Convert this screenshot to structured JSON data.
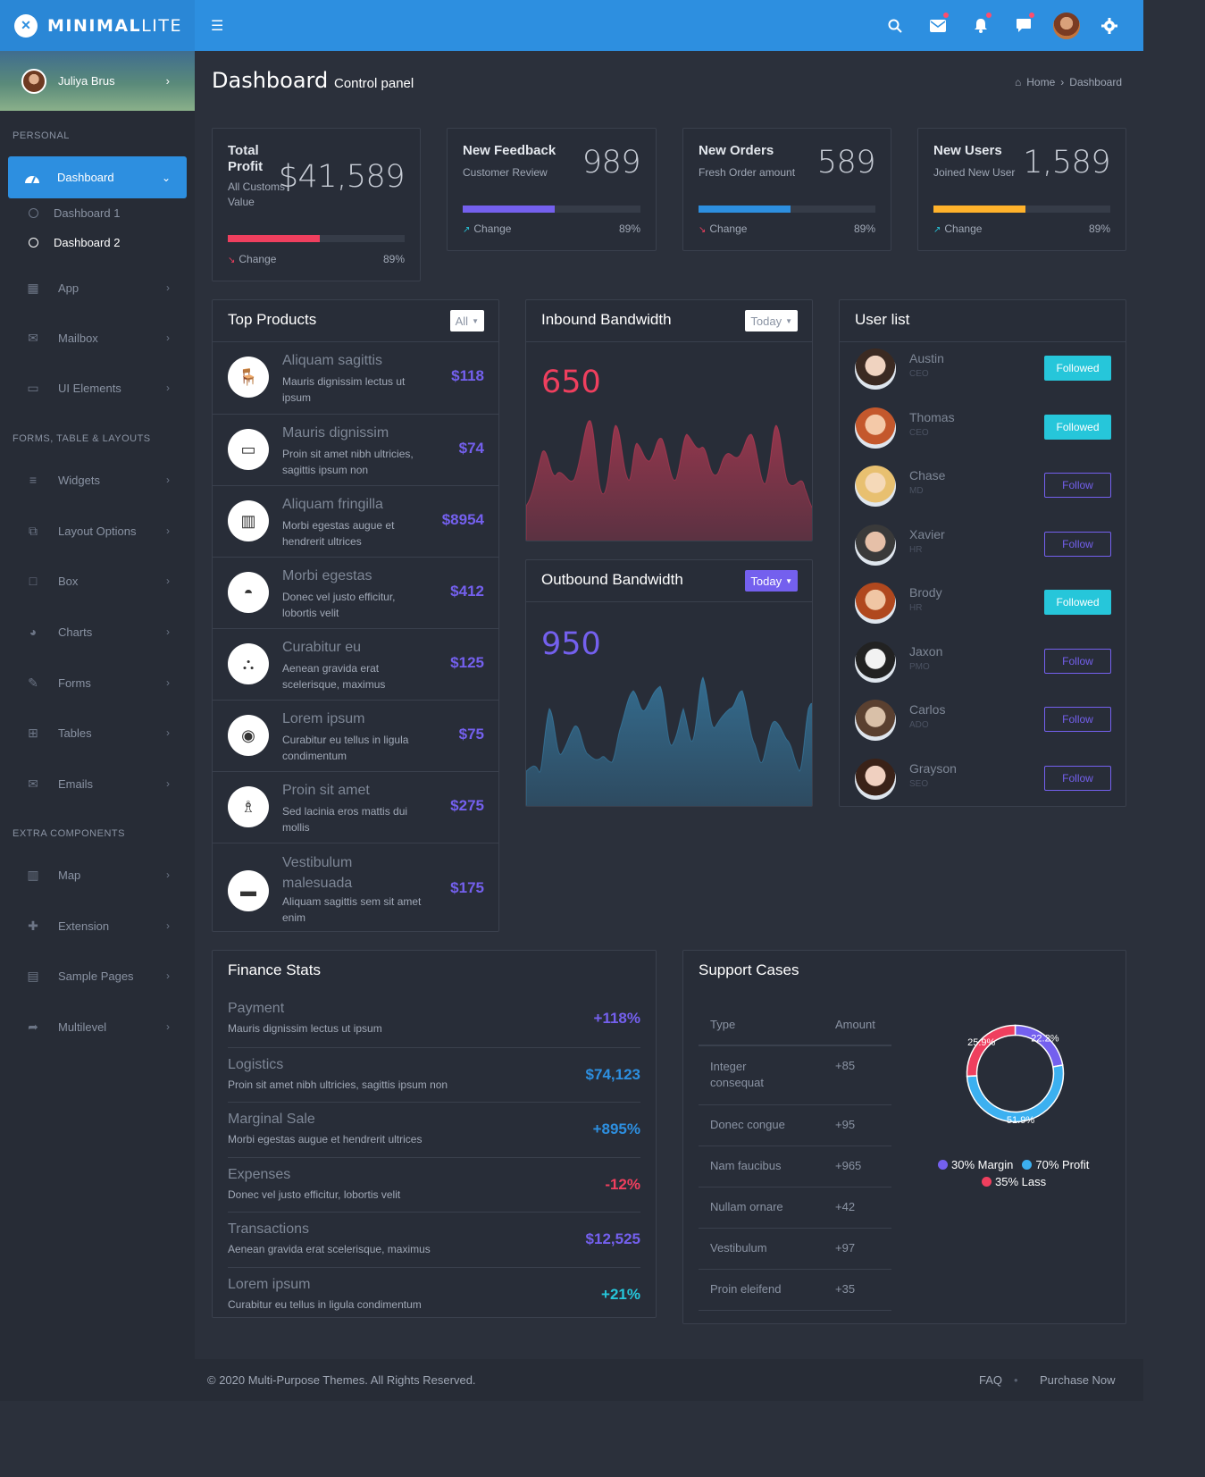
{
  "brand": {
    "bold": "MINIMAL",
    "light": "LITE"
  },
  "topbar": {
    "icons": [
      "search-icon",
      "mail-icon",
      "bell-icon",
      "chat-icon",
      "avatar",
      "gear-icon"
    ]
  },
  "sidebar": {
    "user_name": "Juliya Brus",
    "sections": [
      "PERSONAL",
      "FORMS, TABLE & LAYOUTS",
      "EXTRA COMPONENTS"
    ],
    "items": [
      {
        "label": "Dashboard",
        "icon": "dashboard-icon"
      },
      {
        "label": "App",
        "icon": "grid-icon"
      },
      {
        "label": "Mailbox",
        "icon": "envelope-icon"
      },
      {
        "label": "UI Elements",
        "icon": "laptop-icon"
      },
      {
        "label": "Widgets",
        "icon": "bars-icon"
      },
      {
        "label": "Layout Options",
        "icon": "copy-icon"
      },
      {
        "label": "Box",
        "icon": "square-icon"
      },
      {
        "label": "Charts",
        "icon": "pie-icon"
      },
      {
        "label": "Forms",
        "icon": "edit-icon"
      },
      {
        "label": "Tables",
        "icon": "table-icon"
      },
      {
        "label": "Emails",
        "icon": "envelope-open-icon"
      },
      {
        "label": "Map",
        "icon": "map-icon"
      },
      {
        "label": "Extension",
        "icon": "plug-icon"
      },
      {
        "label": "Sample Pages",
        "icon": "file-icon"
      },
      {
        "label": "Multilevel",
        "icon": "share-icon"
      }
    ],
    "subitems": [
      "Dashboard 1",
      "Dashboard 2"
    ]
  },
  "header": {
    "title": "Dashboard",
    "subtitle": "Control panel",
    "breadcrumb": [
      "Home",
      "Dashboard"
    ]
  },
  "stats": [
    {
      "title": "Total Profit",
      "sub": "All Customs Value",
      "value": "$41,589",
      "change": "Change",
      "pct": "89%",
      "fill": 0.52,
      "color": "#ef3f5e"
    },
    {
      "title": "New Feedback",
      "sub": "Customer Review",
      "value": "989",
      "change": "Change",
      "pct": "89%",
      "fill": 0.52,
      "color": "#7460ee"
    },
    {
      "title": "New Orders",
      "sub": "Fresh Order amount",
      "value": "589",
      "change": "Change",
      "pct": "89%",
      "fill": 0.52,
      "color": "#2d8fe0"
    },
    {
      "title": "New Users",
      "sub": "Joined New User",
      "value": "1,589",
      "change": "Change",
      "pct": "89%",
      "fill": 0.52,
      "color": "#ffb22b"
    }
  ],
  "top_products": {
    "title": "Top Products",
    "filter": "All",
    "items": [
      {
        "name": "Aliquam sagittis",
        "desc": "Mauris dignissim lectus ut ipsum",
        "price": "$118"
      },
      {
        "name": "Mauris dignissim",
        "desc": "Proin sit amet nibh ultricies, sagittis ipsum non",
        "price": "$74"
      },
      {
        "name": "Aliquam fringilla",
        "desc": "Morbi egestas augue et hendrerit ultrices",
        "price": "$8954"
      },
      {
        "name": "Morbi egestas",
        "desc": "Donec vel justo efficitur, lobortis velit",
        "price": "$412"
      },
      {
        "name": "Curabitur eu",
        "desc": "Aenean gravida erat scelerisque, maximus",
        "price": "$125"
      },
      {
        "name": "Lorem ipsum",
        "desc": "Curabitur eu tellus in ligula condimentum",
        "price": "$75"
      },
      {
        "name": "Proin sit amet",
        "desc": "Sed lacinia eros mattis dui mollis",
        "price": "$275"
      },
      {
        "name": "Vestibulum malesuada",
        "desc": "Aliquam sagittis sem sit amet enim",
        "price": "$175"
      }
    ]
  },
  "inbound": {
    "title": "Inbound Bandwidth",
    "filter": "Today",
    "value": "650",
    "color": "#ef3f5e"
  },
  "outbound": {
    "title": "Outbound Bandwidth",
    "filter": "Today",
    "value": "950",
    "color": "#7460ee"
  },
  "user_list": {
    "title": "User list",
    "users": [
      {
        "name": "Austin",
        "role": "CEO",
        "btn": "Followed",
        "followed": true
      },
      {
        "name": "Thomas",
        "role": "CEO",
        "btn": "Followed",
        "followed": true
      },
      {
        "name": "Chase",
        "role": "MD",
        "btn": "Follow",
        "followed": false
      },
      {
        "name": "Xavier",
        "role": "HR",
        "btn": "Follow",
        "followed": false
      },
      {
        "name": "Brody",
        "role": "HR",
        "btn": "Followed",
        "followed": true
      },
      {
        "name": "Jaxon",
        "role": "PMO",
        "btn": "Follow",
        "followed": false
      },
      {
        "name": "Carlos",
        "role": "ADO",
        "btn": "Follow",
        "followed": false
      },
      {
        "name": "Grayson",
        "role": "SEO",
        "btn": "Follow",
        "followed": false
      }
    ]
  },
  "finance": {
    "title": "Finance Stats",
    "items": [
      {
        "name": "Payment",
        "desc": "Mauris dignissim lectus ut ipsum",
        "value": "+118%",
        "color": "#7460ee"
      },
      {
        "name": "Logistics",
        "desc": "Proin sit amet nibh ultricies, sagittis ipsum non",
        "value": "$74,123",
        "color": "#2d8fe0"
      },
      {
        "name": "Marginal Sale",
        "desc": "Morbi egestas augue et hendrerit ultrices",
        "value": "+895%",
        "color": "#2d8fe0"
      },
      {
        "name": "Expenses",
        "desc": "Donec vel justo efficitur, lobortis velit",
        "value": "-12%",
        "color": "#ef3f5e"
      },
      {
        "name": "Transactions",
        "desc": "Aenean gravida erat scelerisque, maximus",
        "value": "$12,525",
        "color": "#7460ee"
      },
      {
        "name": "Lorem ipsum",
        "desc": "Curabitur eu tellus in ligula condimentum",
        "value": "+21%",
        "color": "#26c6da"
      }
    ]
  },
  "support": {
    "title": "Support Cases",
    "headers": [
      "Type",
      "Amount"
    ],
    "rows": [
      {
        "type": "Integer consequat",
        "amount": "+85"
      },
      {
        "type": "Donec congue",
        "amount": "+95"
      },
      {
        "type": "Nam faucibus",
        "amount": "+965"
      },
      {
        "type": "Nullam ornare",
        "amount": "+42"
      },
      {
        "type": "Vestibulum",
        "amount": "+97"
      },
      {
        "type": "Proin eleifend",
        "amount": "+35"
      }
    ],
    "donut": [
      {
        "label": "22.2%",
        "value": 22.2,
        "color": "#7460ee"
      },
      {
        "label": "51.9%",
        "value": 51.9,
        "color": "#3cb0f0"
      },
      {
        "label": "25.9%",
        "value": 25.9,
        "color": "#ef3f5e"
      }
    ],
    "legend": [
      {
        "label": "30% Margin",
        "color": "#7460ee"
      },
      {
        "label": "70% Profit",
        "color": "#3cb0f0"
      },
      {
        "label": "35% Lass",
        "color": "#ef3f5e"
      }
    ]
  },
  "footer": {
    "copyright": "© 2020 Multi-Purpose Themes. All Rights Reserved.",
    "links": [
      "FAQ",
      "Purchase Now"
    ]
  }
}
